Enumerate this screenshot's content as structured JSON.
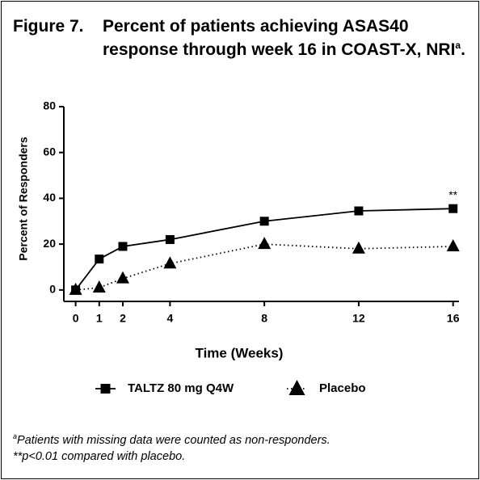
{
  "chart_data": {
    "type": "line",
    "figure_label": "Figure 7.",
    "title": "Percent of patients achieving ASAS40 response through week 16 in COAST-X, NRI",
    "title_superscript": "a",
    "title_end": ".",
    "x_label": "Time (Weeks)",
    "y_label": "Percent of Responders",
    "x": [
      0,
      1,
      2,
      4,
      8,
      12,
      16
    ],
    "xlim": [
      -0.5,
      16.25
    ],
    "xticks": [
      0,
      1,
      2,
      4,
      8,
      12,
      16
    ],
    "ylim": [
      -5,
      80
    ],
    "yticks": [
      0,
      20,
      40,
      60,
      80
    ],
    "grid": false,
    "legend_position": "bottom",
    "series": [
      {
        "name": "TALTZ 80 mg Q4W",
        "color": "#000000",
        "marker": "square",
        "line_style": "solid",
        "values": [
          0,
          13.5,
          19,
          22,
          30,
          34.5,
          35.5
        ]
      },
      {
        "name": "Placebo",
        "color": "#000000",
        "marker": "triangle",
        "line_style": "dotted",
        "values": [
          0,
          1,
          5,
          11.5,
          20,
          18,
          19
        ]
      }
    ],
    "annotation": "**",
    "footnotes": [
      {
        "marker": "a",
        "text": "Patients with missing data were counted as non-responders."
      },
      {
        "marker": "**",
        "text": "p<0.01 compared with placebo."
      }
    ]
  }
}
